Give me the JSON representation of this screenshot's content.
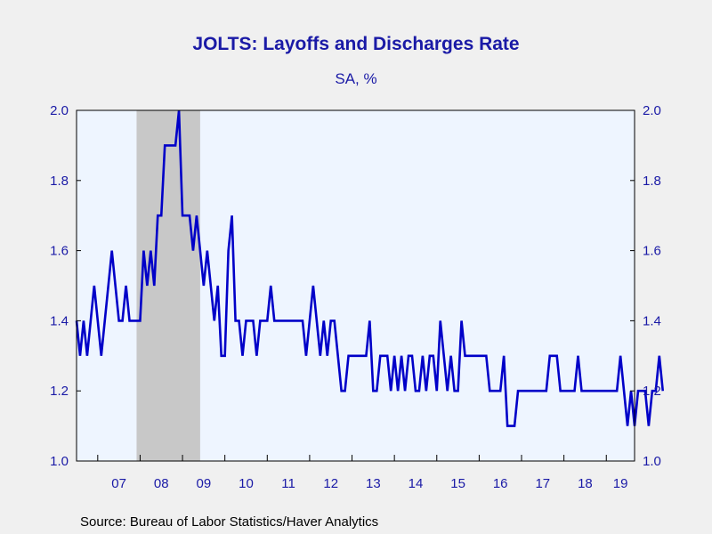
{
  "chart_data": {
    "type": "line",
    "title": "JOLTS: Layoffs and Discharges Rate",
    "subtitle": "SA, %",
    "source": "Source:  Bureau of Labor Statistics/Haver Analytics",
    "ylim": [
      1.0,
      2.0
    ],
    "y_ticks": [
      "1.0",
      "1.2",
      "1.4",
      "1.6",
      "1.8",
      "2.0"
    ],
    "x_start": "2006-07",
    "x_end": "2019-09",
    "x_tick_labels": [
      "07",
      "08",
      "09",
      "10",
      "11",
      "12",
      "13",
      "14",
      "15",
      "16",
      "17",
      "18",
      "19"
    ],
    "recession_shade": {
      "start": "2007-12",
      "end": "2009-06"
    },
    "grid": false,
    "series": [
      {
        "color": "#0000c8",
        "values": [
          1.4,
          1.3,
          1.4,
          1.3,
          1.4,
          1.5,
          1.4,
          1.3,
          1.4,
          1.5,
          1.6,
          1.5,
          1.4,
          1.4,
          1.5,
          1.4,
          1.4,
          1.4,
          1.4,
          1.6,
          1.5,
          1.6,
          1.5,
          1.7,
          1.7,
          1.9,
          1.9,
          1.9,
          1.9,
          2.0,
          1.7,
          1.7,
          1.7,
          1.6,
          1.7,
          1.6,
          1.5,
          1.6,
          1.5,
          1.4,
          1.5,
          1.3,
          1.3,
          1.6,
          1.7,
          1.4,
          1.4,
          1.3,
          1.4,
          1.4,
          1.4,
          1.3,
          1.4,
          1.4,
          1.4,
          1.5,
          1.4,
          1.4,
          1.4,
          1.4,
          1.4,
          1.4,
          1.4,
          1.4,
          1.4,
          1.3,
          1.4,
          1.5,
          1.4,
          1.3,
          1.4,
          1.3,
          1.4,
          1.4,
          1.3,
          1.2,
          1.2,
          1.3,
          1.3,
          1.3,
          1.3,
          1.3,
          1.3,
          1.4,
          1.2,
          1.2,
          1.3,
          1.3,
          1.3,
          1.2,
          1.3,
          1.2,
          1.3,
          1.2,
          1.3,
          1.3,
          1.2,
          1.2,
          1.3,
          1.2,
          1.3,
          1.3,
          1.2,
          1.4,
          1.3,
          1.2,
          1.3,
          1.2,
          1.2,
          1.4,
          1.3,
          1.3,
          1.3,
          1.3,
          1.3,
          1.3,
          1.3,
          1.2,
          1.2,
          1.2,
          1.2,
          1.3,
          1.1,
          1.1,
          1.1,
          1.2,
          1.2,
          1.2,
          1.2,
          1.2,
          1.2,
          1.2,
          1.2,
          1.2,
          1.3,
          1.3,
          1.3,
          1.2,
          1.2,
          1.2,
          1.2,
          1.2,
          1.3,
          1.2,
          1.2,
          1.2,
          1.2,
          1.2,
          1.2,
          1.2,
          1.2,
          1.2,
          1.2,
          1.2,
          1.3,
          1.2,
          1.1,
          1.2,
          1.1,
          1.2,
          1.2,
          1.2,
          1.1,
          1.2,
          1.2,
          1.3,
          1.2
        ]
      }
    ]
  }
}
